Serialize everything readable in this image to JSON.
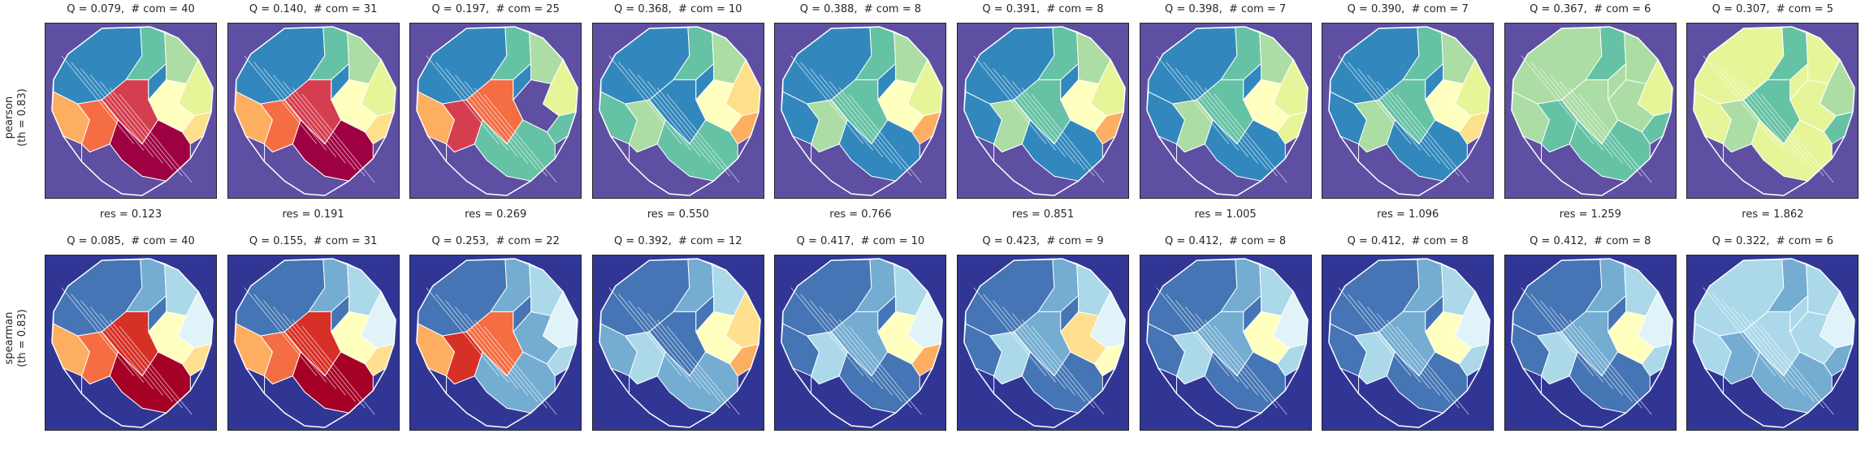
{
  "rows": [
    {
      "label_line1": "pearson",
      "label_line2": "(th = 0.83)",
      "background": "#5e4fa2",
      "panels": [
        {
          "title": "Q = 0.079,  # com = 40",
          "res": "res = 0.123",
          "palette": [
            "#3288bd",
            "#66c2a5",
            "#abdda4",
            "#e6f598",
            "#ffffbf",
            "#fee08b",
            "#fdae61",
            "#f46d43",
            "#d53e4f",
            "#9e0142",
            "#5e4fa2",
            "#3288bd"
          ]
        },
        {
          "title": "Q = 0.140,  # com = 31",
          "res": "res = 0.191",
          "palette": [
            "#3288bd",
            "#66c2a5",
            "#abdda4",
            "#e6f598",
            "#ffffbf",
            "#fee08b",
            "#fdae61",
            "#f46d43",
            "#d53e4f",
            "#9e0142",
            "#5e4fa2",
            "#3288bd"
          ]
        },
        {
          "title": "Q = 0.197,  # com = 25",
          "res": "res = 0.269",
          "palette": [
            "#3288bd",
            "#66c2a5",
            "#abdda4",
            "#e6f598",
            "#5e4fa2",
            "#66c2a5",
            "#fdae61",
            "#d53e4f",
            "#f46d43",
            "#66c2a5",
            "#5e4fa2",
            "#3288bd"
          ]
        },
        {
          "title": "Q = 0.368,  # com = 10",
          "res": "res = 0.550",
          "palette": [
            "#3288bd",
            "#66c2a5",
            "#abdda4",
            "#fee08b",
            "#ffffbf",
            "#fdae61",
            "#66c2a5",
            "#abdda4",
            "#3288bd",
            "#66c2a5",
            "#5e4fa2",
            "#3288bd"
          ]
        },
        {
          "title": "Q = 0.388,  # com = 8",
          "res": "res = 0.766",
          "palette": [
            "#3288bd",
            "#66c2a5",
            "#abdda4",
            "#e6f598",
            "#ffffbf",
            "#fdae61",
            "#3288bd",
            "#abdda4",
            "#66c2a5",
            "#3288bd",
            "#5e4fa2",
            "#3288bd"
          ]
        },
        {
          "title": "Q = 0.391,  # com = 8",
          "res": "res = 0.851",
          "palette": [
            "#3288bd",
            "#66c2a5",
            "#abdda4",
            "#e6f598",
            "#ffffbf",
            "#fdae61",
            "#3288bd",
            "#abdda4",
            "#66c2a5",
            "#3288bd",
            "#5e4fa2",
            "#3288bd"
          ]
        },
        {
          "title": "Q = 0.398,  # com = 7",
          "res": "res = 1.005",
          "palette": [
            "#3288bd",
            "#66c2a5",
            "#abdda4",
            "#e6f598",
            "#ffffbf",
            "#e6f598",
            "#3288bd",
            "#abdda4",
            "#66c2a5",
            "#3288bd",
            "#5e4fa2",
            "#3288bd"
          ]
        },
        {
          "title": "Q = 0.390,  # com = 7",
          "res": "res = 1.096",
          "palette": [
            "#3288bd",
            "#66c2a5",
            "#abdda4",
            "#e6f598",
            "#ffffbf",
            "#fee08b",
            "#3288bd",
            "#abdda4",
            "#66c2a5",
            "#3288bd",
            "#5e4fa2",
            "#3288bd"
          ]
        },
        {
          "title": "Q = 0.367,  # com = 6",
          "res": "res = 1.259",
          "palette": [
            "#abdda4",
            "#66c2a5",
            "#abdda4",
            "#e6f598",
            "#abdda4",
            "#66c2a5",
            "#abdda4",
            "#66c2a5",
            "#abdda4",
            "#66c2a5",
            "#5e4fa2",
            "#abdda4"
          ]
        },
        {
          "title": "Q = 0.307,  # com = 5",
          "res": "res = 1.862",
          "palette": [
            "#e6f598",
            "#66c2a5",
            "#e6f598",
            "#abdda4",
            "#e6f598",
            "#66c2a5",
            "#e6f598",
            "#abdda4",
            "#66c2a5",
            "#e6f598",
            "#5e4fa2",
            "#e6f598"
          ]
        }
      ]
    },
    {
      "label_line1": "spearman",
      "label_line2": "(th = 0.83)",
      "background": "#313695",
      "panels": [
        {
          "title": "Q = 0.085,  # com = 40",
          "res": "",
          "palette": [
            "#4575b4",
            "#74add1",
            "#abd9e9",
            "#e0f3f8",
            "#ffffbf",
            "#fee090",
            "#fdae61",
            "#f46d43",
            "#d73027",
            "#a50026",
            "#313695",
            "#4575b4"
          ]
        },
        {
          "title": "Q = 0.155,  # com = 31",
          "res": "",
          "palette": [
            "#4575b4",
            "#74add1",
            "#abd9e9",
            "#e0f3f8",
            "#ffffbf",
            "#fee090",
            "#fdae61",
            "#f46d43",
            "#d73027",
            "#a50026",
            "#313695",
            "#4575b4"
          ]
        },
        {
          "title": "Q = 0.253,  # com = 22",
          "res": "",
          "palette": [
            "#4575b4",
            "#74add1",
            "#abd9e9",
            "#e0f3f8",
            "#74add1",
            "#abd9e9",
            "#fdae61",
            "#d73027",
            "#f46d43",
            "#74add1",
            "#313695",
            "#4575b4"
          ]
        },
        {
          "title": "Q = 0.392,  # com = 12",
          "res": "",
          "palette": [
            "#4575b4",
            "#74add1",
            "#abd9e9",
            "#fee090",
            "#ffffbf",
            "#fdae61",
            "#74add1",
            "#abd9e9",
            "#4575b4",
            "#74add1",
            "#313695",
            "#4575b4"
          ]
        },
        {
          "title": "Q = 0.417,  # com = 10",
          "res": "",
          "palette": [
            "#4575b4",
            "#74add1",
            "#abd9e9",
            "#e0f3f8",
            "#ffffbf",
            "#fdae61",
            "#4575b4",
            "#abd9e9",
            "#74add1",
            "#4575b4",
            "#313695",
            "#4575b4"
          ]
        },
        {
          "title": "Q = 0.423,  # com = 9",
          "res": "",
          "palette": [
            "#4575b4",
            "#74add1",
            "#abd9e9",
            "#e0f3f8",
            "#fee090",
            "#ffffbf",
            "#4575b4",
            "#abd9e9",
            "#74add1",
            "#4575b4",
            "#313695",
            "#4575b4"
          ]
        },
        {
          "title": "Q = 0.412,  # com = 8",
          "res": "",
          "palette": [
            "#4575b4",
            "#74add1",
            "#abd9e9",
            "#e0f3f8",
            "#ffffbf",
            "#abd9e9",
            "#4575b4",
            "#abd9e9",
            "#74add1",
            "#4575b4",
            "#313695",
            "#4575b4"
          ]
        },
        {
          "title": "Q = 0.412,  # com = 8",
          "res": "",
          "palette": [
            "#4575b4",
            "#74add1",
            "#abd9e9",
            "#e0f3f8",
            "#ffffbf",
            "#abd9e9",
            "#4575b4",
            "#abd9e9",
            "#74add1",
            "#4575b4",
            "#313695",
            "#4575b4"
          ]
        },
        {
          "title": "Q = 0.412,  # com = 8",
          "res": "",
          "palette": [
            "#4575b4",
            "#74add1",
            "#abd9e9",
            "#e0f3f8",
            "#ffffbf",
            "#abd9e9",
            "#4575b4",
            "#abd9e9",
            "#74add1",
            "#4575b4",
            "#313695",
            "#4575b4"
          ]
        },
        {
          "title": "Q = 0.322,  # com = 6",
          "res": "",
          "palette": [
            "#abd9e9",
            "#74add1",
            "#abd9e9",
            "#e0f3f8",
            "#abd9e9",
            "#74add1",
            "#abd9e9",
            "#74add1",
            "#abd9e9",
            "#74add1",
            "#313695",
            "#abd9e9"
          ]
        }
      ]
    }
  ]
}
